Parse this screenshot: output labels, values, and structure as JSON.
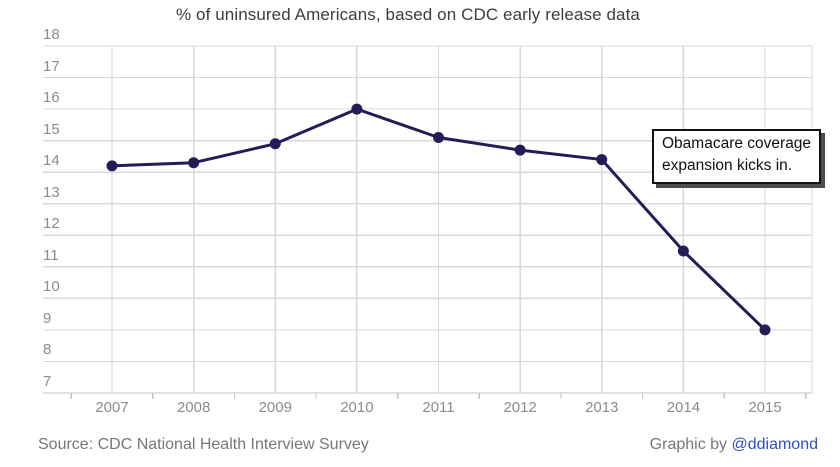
{
  "chart_data": {
    "type": "line",
    "title": "% of uninsured Americans, based on CDC early release data",
    "x": [
      "2007",
      "2008",
      "2009",
      "2010",
      "2011",
      "2012",
      "2013",
      "2014",
      "2015"
    ],
    "series": [
      {
        "name": "% of uninsured Americans",
        "values": [
          14.2,
          14.3,
          14.9,
          16.0,
          15.1,
          14.7,
          14.4,
          11.5,
          9.0
        ]
      }
    ],
    "ylim": [
      7,
      18
    ],
    "yticks": [
      18,
      17,
      16,
      15,
      14,
      13,
      12,
      11,
      10,
      9,
      8,
      7
    ],
    "grid": true,
    "legend_position": "none",
    "annotation": {
      "line1": "Obamacare coverage",
      "line2": "expansion kicks in."
    },
    "colors": {
      "line": "#271a57",
      "marker": "#271a57",
      "gridline": "#d9d9d9",
      "axis_line": "#c6c6c6",
      "tick_label": "#8c8c8c",
      "title_text": "#3d3d3d"
    }
  },
  "footer": {
    "source": "Source: CDC National Health Interview Survey",
    "credit_prefix": "Graphic by ",
    "credit_handle": "@ddiamond",
    "credit_handle_color": "#3050b8"
  }
}
